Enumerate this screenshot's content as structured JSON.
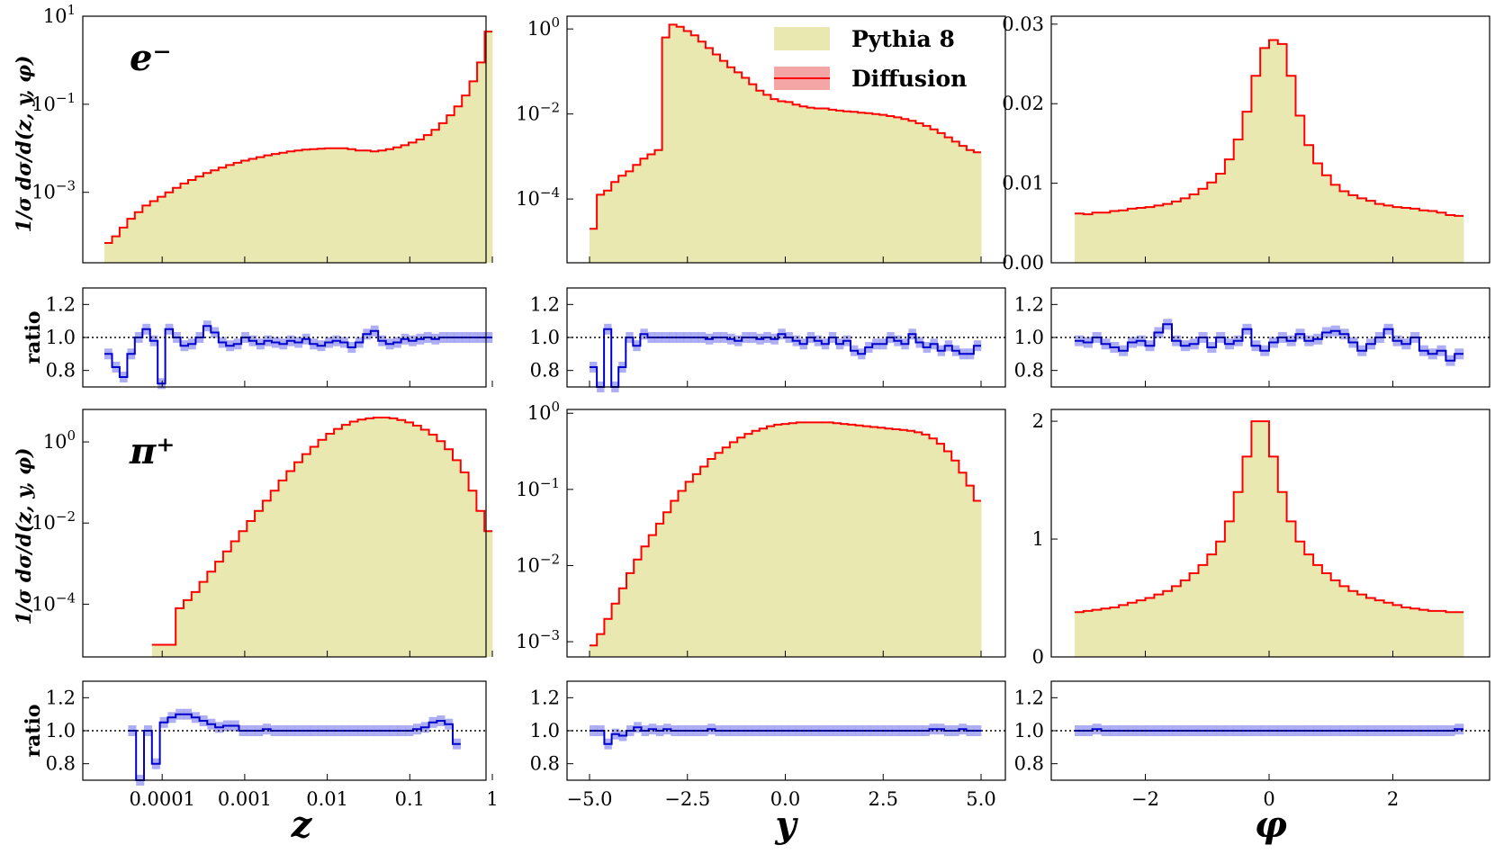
{
  "colors": {
    "pythia_fill": "#e8e8b0",
    "diffusion_line": "#ff0000",
    "diffusion_band": "#f08080",
    "ratio_line": "#0000cc",
    "ratio_band": "#8c8cf0",
    "axis": "#000000"
  },
  "labels": {
    "ylabel_main": "1/σ dσ/d(z, y, φ)",
    "ylabel_ratio": "ratio",
    "legend_pythia": "Pythia 8",
    "legend_diffusion": "Diffusion",
    "particle_electron": "e⁻",
    "particle_pion": "π⁺"
  },
  "chart_data": [
    {
      "id": "ez",
      "type": "histogram",
      "particle": "e-",
      "variable": "z",
      "scale": "log",
      "xscale": "log",
      "xlim": [
        -4.7,
        0
      ],
      "ylim": [
        -4.6,
        1
      ],
      "yticks": [
        {
          "v": 1,
          "label": "10^1"
        },
        {
          "v": -1,
          "label": "10^-1"
        },
        {
          "v": -3,
          "label": "10^-3"
        }
      ],
      "xticks": [
        -4,
        -3,
        -2,
        -1,
        0
      ],
      "values": [
        -4.15,
        -4.0,
        -3.8,
        -3.6,
        -3.45,
        -3.3,
        -3.2,
        -3.1,
        -3.0,
        -2.9,
        -2.8,
        -2.72,
        -2.64,
        -2.56,
        -2.5,
        -2.44,
        -2.38,
        -2.33,
        -2.28,
        -2.24,
        -2.2,
        -2.16,
        -2.13,
        -2.1,
        -2.07,
        -2.05,
        -2.03,
        -2.02,
        -2.01,
        -2.0,
        -2.0,
        -2.0,
        -2.02,
        -2.05,
        -2.05,
        -2.07,
        -2.05,
        -2.02,
        -1.98,
        -1.93,
        -1.87,
        -1.8,
        -1.7,
        -1.58,
        -1.43,
        -1.25,
        -1.05,
        -0.8,
        -0.48,
        -0.05,
        0.65
      ],
      "ratio": [
        0.9,
        0.82,
        0.76,
        0.9,
        1.0,
        1.05,
        0.98,
        0.72,
        1.05,
        1.0,
        0.95,
        0.96,
        1.0,
        1.07,
        1.03,
        0.97,
        0.95,
        0.96,
        1.0,
        0.98,
        0.96,
        0.98,
        0.97,
        0.96,
        0.98,
        0.97,
        0.99,
        0.96,
        0.95,
        0.97,
        0.98,
        0.97,
        0.94,
        0.97,
        1.02,
        1.04,
        0.98,
        0.96,
        0.97,
        0.99,
        0.98,
        0.99,
        1.0,
        0.99,
        1.0,
        1.0,
        1.0,
        1.0,
        1.0,
        1.0,
        1.0
      ]
    },
    {
      "id": "ey",
      "type": "histogram",
      "particle": "e-",
      "variable": "y",
      "scale": "log",
      "xlim": [
        -5.5,
        5.5
      ],
      "ylim": [
        -5.5,
        0.3
      ],
      "yticks": [
        {
          "v": 0,
          "label": "10^0"
        },
        {
          "v": -2,
          "label": "10^-2"
        },
        {
          "v": -4,
          "label": "10^-4"
        }
      ],
      "xticks": [
        -5,
        -2.5,
        0,
        2.5,
        5
      ],
      "values": [
        -4.7,
        -3.9,
        -3.8,
        -3.6,
        -3.45,
        -3.35,
        -3.2,
        -3.05,
        -2.95,
        -2.85,
        -0.2,
        0.1,
        0.05,
        -0.05,
        -0.15,
        -0.3,
        -0.45,
        -0.6,
        -0.75,
        -0.9,
        -1.02,
        -1.15,
        -1.3,
        -1.45,
        -1.55,
        -1.65,
        -1.7,
        -1.72,
        -1.78,
        -1.82,
        -1.85,
        -1.87,
        -1.87,
        -1.9,
        -1.92,
        -1.94,
        -1.95,
        -1.97,
        -1.98,
        -2.0,
        -2.02,
        -2.05,
        -2.08,
        -2.12,
        -2.16,
        -2.22,
        -2.28,
        -2.36,
        -2.45,
        -2.55,
        -2.65,
        -2.75,
        -2.85,
        -2.9
      ],
      "ratio": [
        0.82,
        0.7,
        1.05,
        0.7,
        0.82,
        1.0,
        0.95,
        1.02,
        1.0,
        1.0,
        1.0,
        1.0,
        1.0,
        1.0,
        1.0,
        1.0,
        0.99,
        1.0,
        1.0,
        0.99,
        0.98,
        1.0,
        1.0,
        0.99,
        1.0,
        0.99,
        1.02,
        1.0,
        0.98,
        0.96,
        1.0,
        0.98,
        0.96,
        1.0,
        0.96,
        0.98,
        0.92,
        0.9,
        0.94,
        0.96,
        0.96,
        1.0,
        0.98,
        0.96,
        1.02,
        0.97,
        0.94,
        0.96,
        0.92,
        0.95,
        0.92,
        0.9,
        0.9,
        0.95
      ]
    },
    {
      "id": "ephi",
      "type": "histogram",
      "particle": "e-",
      "variable": "phi",
      "scale": "linear",
      "xlim": [
        -3.5,
        3.5
      ],
      "ylim": [
        0,
        0.031
      ],
      "yticks": [
        {
          "v": 0,
          "label": "0.00"
        },
        {
          "v": 0.01,
          "label": "0.01"
        },
        {
          "v": 0.02,
          "label": "0.02"
        },
        {
          "v": 0.03,
          "label": "0.03"
        }
      ],
      "xticks": [
        -2,
        0,
        2
      ],
      "values": [
        0.0062,
        0.0061,
        0.0063,
        0.0063,
        0.0065,
        0.0066,
        0.0068,
        0.0069,
        0.007,
        0.0072,
        0.0074,
        0.0077,
        0.0081,
        0.0086,
        0.0093,
        0.0101,
        0.0112,
        0.013,
        0.0155,
        0.019,
        0.0235,
        0.027,
        0.028,
        0.0275,
        0.0235,
        0.0185,
        0.0148,
        0.0125,
        0.011,
        0.0098,
        0.009,
        0.0085,
        0.0081,
        0.0078,
        0.0074,
        0.0072,
        0.007,
        0.0069,
        0.0068,
        0.0066,
        0.0065,
        0.0063,
        0.006,
        0.0059
      ],
      "ratio": [
        0.98,
        0.97,
        1.0,
        0.96,
        0.94,
        0.92,
        0.97,
        0.98,
        0.95,
        1.03,
        1.08,
        0.98,
        0.95,
        0.96,
        1.0,
        0.94,
        1.0,
        0.96,
        0.98,
        1.05,
        0.95,
        0.92,
        0.97,
        1.0,
        0.98,
        1.02,
        0.98,
        0.99,
        1.03,
        1.04,
        1.02,
        0.97,
        0.92,
        0.96,
        1.0,
        1.05,
        0.98,
        0.96,
        1.0,
        0.92,
        0.9,
        0.92,
        0.86,
        0.9
      ]
    },
    {
      "id": "pz",
      "type": "histogram",
      "particle": "pi+",
      "variable": "z",
      "scale": "log",
      "xscale": "log",
      "xlim": [
        -4.7,
        0
      ],
      "ylim": [
        -5.3,
        0.8
      ],
      "yticks": [
        {
          "v": 0,
          "label": "10^0"
        },
        {
          "v": -2,
          "label": "10^-2"
        },
        {
          "v": -4,
          "label": "10^-4"
        }
      ],
      "xticks": [
        -4,
        -3,
        -2,
        -1,
        0
      ],
      "values": [
        null,
        null,
        null,
        null,
        null,
        null,
        -5,
        -5,
        -5,
        -4.1,
        -3.9,
        -3.7,
        -3.45,
        -3.2,
        -2.95,
        -2.7,
        -2.45,
        -2.2,
        -1.95,
        -1.7,
        -1.45,
        -1.2,
        -0.95,
        -0.72,
        -0.5,
        -0.3,
        -0.12,
        0.05,
        0.2,
        0.32,
        0.42,
        0.5,
        0.55,
        0.58,
        0.6,
        0.6,
        0.58,
        0.54,
        0.48,
        0.4,
        0.3,
        0.18,
        0.02,
        -0.18,
        -0.45,
        -0.75,
        -1.2,
        -1.7,
        -2.2
      ],
      "ratio": [
        null,
        null,
        null,
        1.0,
        0.65,
        1.0,
        0.8,
        1.05,
        1.08,
        1.1,
        1.1,
        1.08,
        1.06,
        1.04,
        1.02,
        1.03,
        1.03,
        1.0,
        1.0,
        1.0,
        1.01,
        1.0,
        1.0,
        1.0,
        1.0,
        1.0,
        1.0,
        1.0,
        1.0,
        1.0,
        1.0,
        1.0,
        1.0,
        1.0,
        1.0,
        1.0,
        1.0,
        1.0,
        1.0,
        1.01,
        1.02,
        1.05,
        1.06,
        1.04,
        0.92,
        null,
        null,
        null,
        null
      ]
    },
    {
      "id": "py",
      "type": "histogram",
      "particle": "pi+",
      "variable": "y",
      "scale": "log",
      "xlim": [
        -5.5,
        5.5
      ],
      "ylim": [
        -3.2,
        0.05
      ],
      "yticks": [
        {
          "v": 0,
          "label": "10^0"
        },
        {
          "v": -1,
          "label": "10^-1"
        },
        {
          "v": -2,
          "label": "10^-2"
        },
        {
          "v": -3,
          "label": "10^-3"
        }
      ],
      "xticks": [
        -5,
        -2.5,
        0,
        2.5,
        5
      ],
      "values": [
        -3.05,
        -2.9,
        -2.7,
        -2.5,
        -2.3,
        -2.1,
        -1.92,
        -1.75,
        -1.6,
        -1.45,
        -1.3,
        -1.15,
        -1.02,
        -0.9,
        -0.8,
        -0.7,
        -0.6,
        -0.52,
        -0.45,
        -0.38,
        -0.32,
        -0.27,
        -0.23,
        -0.2,
        -0.17,
        -0.15,
        -0.14,
        -0.13,
        -0.12,
        -0.12,
        -0.12,
        -0.12,
        -0.12,
        -0.13,
        -0.14,
        -0.15,
        -0.16,
        -0.17,
        -0.18,
        -0.19,
        -0.2,
        -0.21,
        -0.22,
        -0.23,
        -0.25,
        -0.28,
        -0.33,
        -0.4,
        -0.5,
        -0.62,
        -0.78,
        -0.95,
        -1.15
      ],
      "ratio": [
        1.0,
        1.0,
        0.92,
        0.98,
        0.97,
        1.0,
        1.02,
        1.0,
        1.01,
        1.0,
        1.01,
        1.0,
        1.0,
        1.0,
        1.0,
        1.0,
        1.01,
        1.0,
        1.0,
        1.0,
        1.0,
        1.0,
        1.0,
        1.0,
        1.0,
        1.0,
        1.0,
        1.0,
        1.0,
        1.0,
        1.0,
        1.0,
        1.0,
        1.0,
        1.0,
        1.0,
        1.0,
        1.0,
        1.0,
        1.0,
        1.0,
        1.0,
        1.0,
        1.0,
        1.0,
        1.0,
        1.01,
        1.01,
        1.0,
        1.0,
        1.01,
        1.0,
        1.0
      ]
    },
    {
      "id": "pphi",
      "type": "histogram",
      "particle": "pi+",
      "variable": "phi",
      "scale": "linear",
      "xlim": [
        -3.5,
        3.5
      ],
      "ylim": [
        0,
        2.1
      ],
      "yticks": [
        {
          "v": 0,
          "label": "0"
        },
        {
          "v": 1,
          "label": "1"
        },
        {
          "v": 2,
          "label": "2"
        }
      ],
      "xticks": [
        -2,
        0,
        2
      ],
      "values": [
        0.38,
        0.39,
        0.4,
        0.41,
        0.42,
        0.44,
        0.46,
        0.48,
        0.5,
        0.53,
        0.56,
        0.6,
        0.65,
        0.71,
        0.78,
        0.87,
        0.98,
        1.15,
        1.4,
        1.7,
        2.0,
        2.0,
        1.7,
        1.4,
        1.15,
        0.98,
        0.87,
        0.78,
        0.71,
        0.65,
        0.6,
        0.56,
        0.53,
        0.5,
        0.48,
        0.46,
        0.44,
        0.42,
        0.41,
        0.4,
        0.39,
        0.39,
        0.38,
        0.38
      ],
      "ratio": [
        1.0,
        1.0,
        1.01,
        1.0,
        1.0,
        1.0,
        1.0,
        1.0,
        1.0,
        1.0,
        1.0,
        1.0,
        1.0,
        1.0,
        1.0,
        1.0,
        1.0,
        1.0,
        1.0,
        1.0,
        1.0,
        1.0,
        1.0,
        1.0,
        1.0,
        1.0,
        1.0,
        1.0,
        1.0,
        1.0,
        1.0,
        1.0,
        1.0,
        1.0,
        1.0,
        1.0,
        1.0,
        1.0,
        1.0,
        1.0,
        1.0,
        1.0,
        1.0,
        1.01
      ]
    }
  ],
  "ratio_axis": {
    "ylim": [
      0.7,
      1.3
    ],
    "ticks": [
      {
        "v": 0.8,
        "label": "0.8"
      },
      {
        "v": 1.0,
        "label": "1.0"
      },
      {
        "v": 1.2,
        "label": "1.2"
      }
    ]
  },
  "xtick_labels": {
    "z": [
      "0.0001",
      "0.001",
      "0.01",
      "0.1",
      "1"
    ],
    "y": [
      "−5.0",
      "−2.5",
      "0.0",
      "2.5",
      "5.0"
    ],
    "phi": [
      "−2",
      "0",
      "2"
    ]
  },
  "xlabels": {
    "z": "z",
    "y": "y",
    "phi": "φ"
  }
}
